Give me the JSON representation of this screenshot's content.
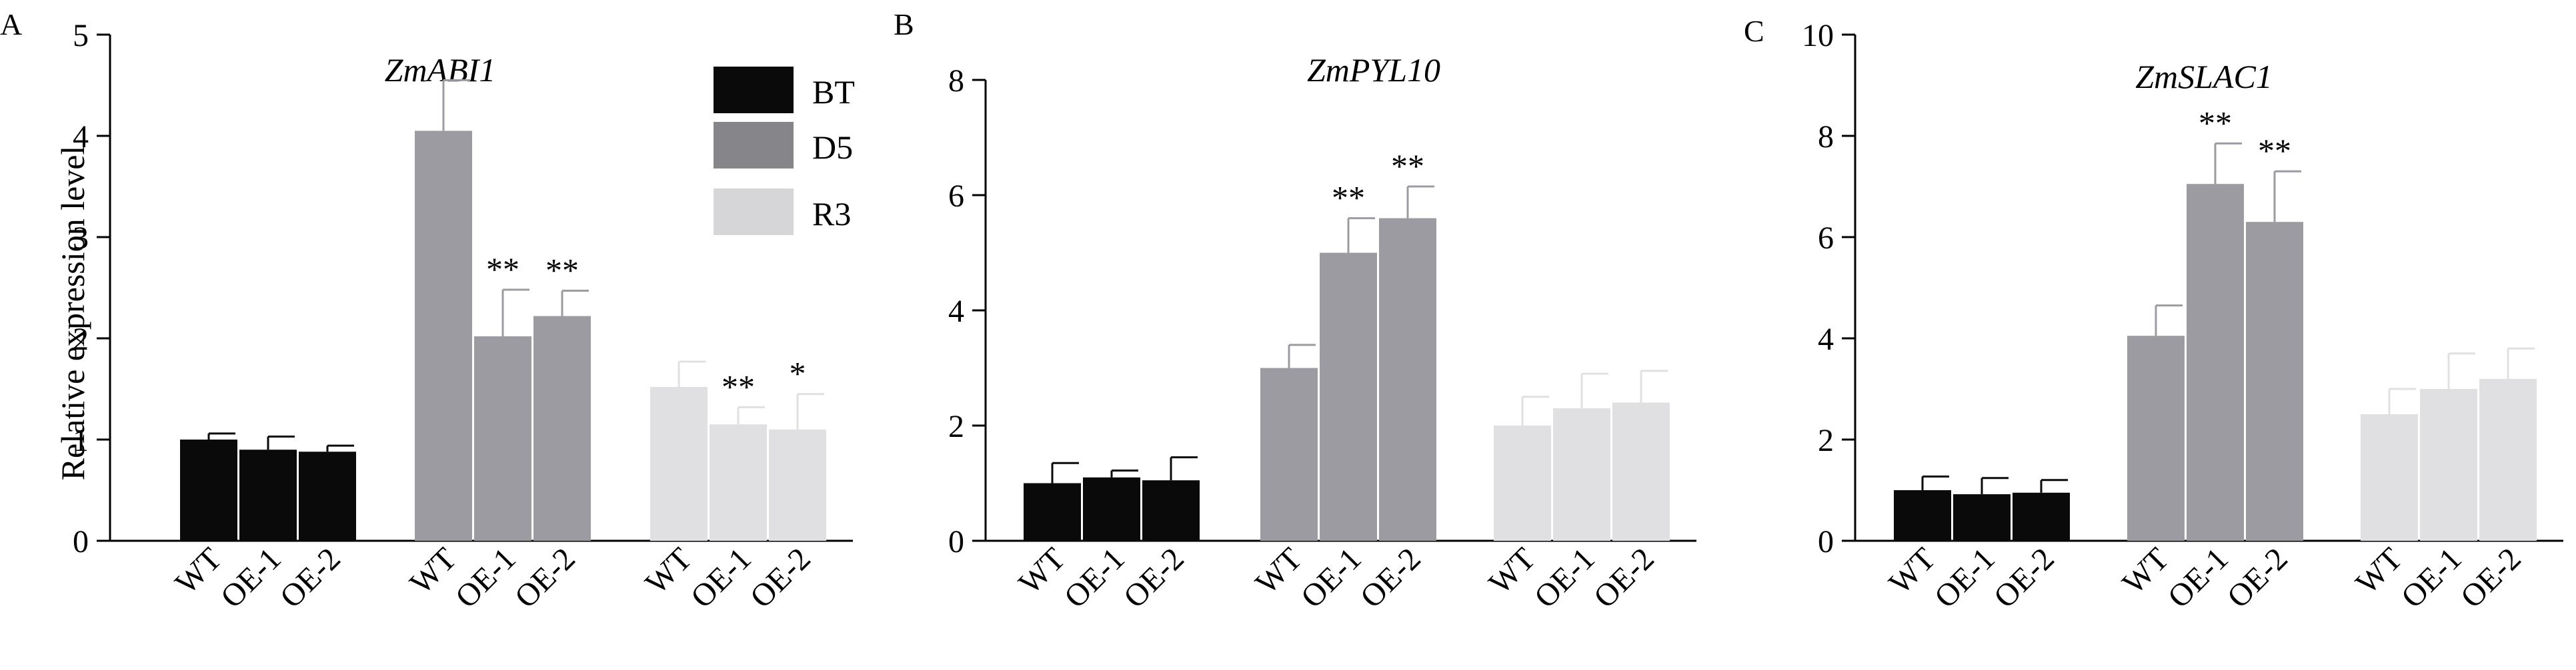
{
  "chart_data": [
    {
      "type": "bar",
      "panel_label": "A",
      "title": "ZmABI1",
      "ylabel": "Relative expression level",
      "ylim": [
        0,
        5
      ],
      "yticks": [
        0,
        1,
        2,
        3,
        4,
        5
      ],
      "legend": [
        {
          "name": "BT",
          "color": "#0a0a0a"
        },
        {
          "name": "D5",
          "color": "#86858a"
        },
        {
          "name": "R3",
          "color": "#d6d5d8"
        }
      ],
      "groups": [
        {
          "name": "BT",
          "color": "#0a0a0a",
          "bars": [
            {
              "label": "WT",
              "value": 1.0,
              "error": 0.06,
              "sig": ""
            },
            {
              "label": "OE-1",
              "value": 0.9,
              "error": 0.13,
              "sig": ""
            },
            {
              "label": "OE-2",
              "value": 0.88,
              "error": 0.06,
              "sig": ""
            }
          ]
        },
        {
          "name": "D5",
          "color": "#9c9ba2",
          "bars": [
            {
              "label": "WT",
              "value": 4.05,
              "error": 0.5,
              "sig": ""
            },
            {
              "label": "OE-1",
              "value": 2.02,
              "error": 0.46,
              "sig": "**"
            },
            {
              "label": "OE-2",
              "value": 2.22,
              "error": 0.25,
              "sig": "**"
            }
          ]
        },
        {
          "name": "R3",
          "color": "#e0e0e2",
          "bars": [
            {
              "label": "WT",
              "value": 1.52,
              "error": 0.25,
              "sig": ""
            },
            {
              "label": "OE-1",
              "value": 1.15,
              "error": 0.17,
              "sig": "**"
            },
            {
              "label": "OE-2",
              "value": 1.1,
              "error": 0.35,
              "sig": "*"
            }
          ]
        }
      ]
    },
    {
      "type": "bar",
      "panel_label": "B",
      "title": "ZmPYL10",
      "ylim": [
        0,
        8
      ],
      "yticks": [
        0,
        2,
        4,
        6,
        8
      ],
      "groups": [
        {
          "name": "BT",
          "color": "#0a0a0a",
          "bars": [
            {
              "label": "WT",
              "value": 1.0,
              "error": 0.35,
              "sig": ""
            },
            {
              "label": "OE-1",
              "value": 1.1,
              "error": 0.12,
              "sig": ""
            },
            {
              "label": "OE-2",
              "value": 1.05,
              "error": 0.4,
              "sig": ""
            }
          ]
        },
        {
          "name": "D5",
          "color": "#9c9ba2",
          "bars": [
            {
              "label": "WT",
              "value": 3.0,
              "error": 0.4,
              "sig": ""
            },
            {
              "label": "OE-1",
              "value": 5.0,
              "error": 0.6,
              "sig": "**"
            },
            {
              "label": "OE-2",
              "value": 5.6,
              "error": 0.55,
              "sig": "**"
            }
          ]
        },
        {
          "name": "R3",
          "color": "#e0e0e2",
          "bars": [
            {
              "label": "WT",
              "value": 2.0,
              "error": 0.5,
              "sig": ""
            },
            {
              "label": "OE-1",
              "value": 2.3,
              "error": 0.6,
              "sig": ""
            },
            {
              "label": "OE-2",
              "value": 2.4,
              "error": 0.55,
              "sig": ""
            }
          ]
        }
      ]
    },
    {
      "type": "bar",
      "panel_label": "C",
      "title": "ZmSLAC1",
      "ylim": [
        0,
        10
      ],
      "yticks": [
        0,
        2,
        4,
        6,
        8,
        10
      ],
      "groups": [
        {
          "name": "BT",
          "color": "#0a0a0a",
          "bars": [
            {
              "label": "WT",
              "value": 1.0,
              "error": 0.27,
              "sig": ""
            },
            {
              "label": "OE-1",
              "value": 0.92,
              "error": 0.32,
              "sig": ""
            },
            {
              "label": "OE-2",
              "value": 0.95,
              "error": 0.25,
              "sig": ""
            }
          ]
        },
        {
          "name": "D5",
          "color": "#9c9ba2",
          "bars": [
            {
              "label": "WT",
              "value": 4.05,
              "error": 0.6,
              "sig": ""
            },
            {
              "label": "OE-1",
              "value": 7.05,
              "error": 0.8,
              "sig": "**"
            },
            {
              "label": "OE-2",
              "value": 6.3,
              "error": 1.0,
              "sig": "**"
            }
          ]
        },
        {
          "name": "R3",
          "color": "#e0e0e2",
          "bars": [
            {
              "label": "WT",
              "value": 2.5,
              "error": 0.5,
              "sig": ""
            },
            {
              "label": "OE-1",
              "value": 3.0,
              "error": 0.7,
              "sig": ""
            },
            {
              "label": "OE-2",
              "value": 3.2,
              "error": 0.6,
              "sig": ""
            }
          ]
        }
      ]
    }
  ]
}
